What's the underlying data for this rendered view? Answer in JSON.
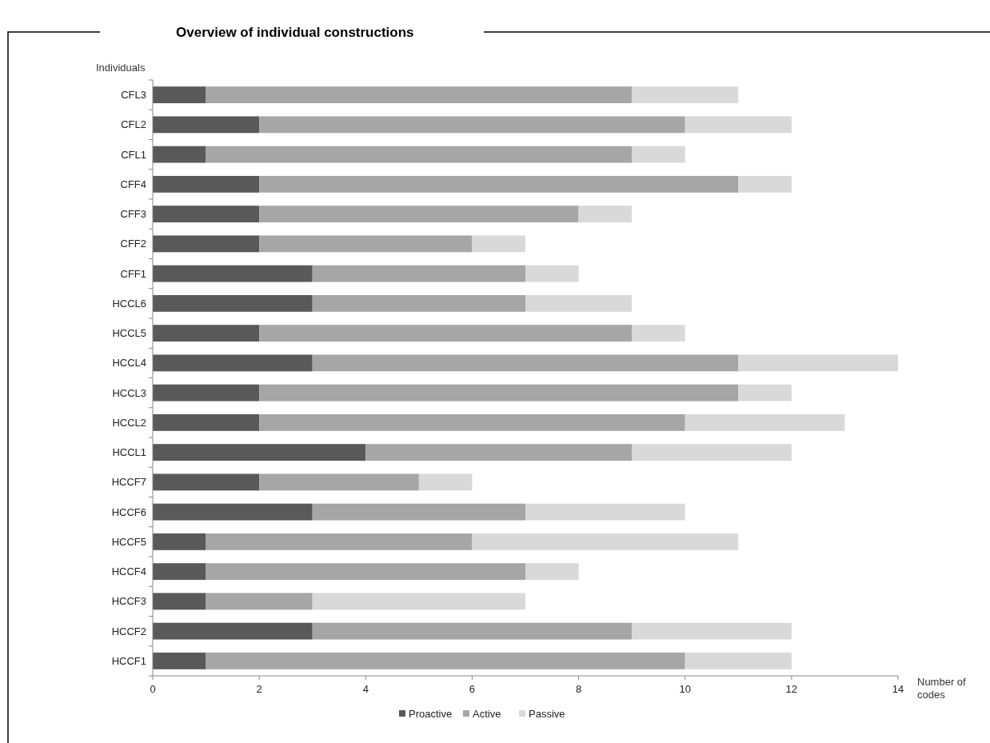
{
  "chart_data": {
    "type": "bar",
    "orientation": "horizontal",
    "stacked": true,
    "title": "Overview of individual constructions",
    "ylabel": "Individuals",
    "xlabel": "Number of codes",
    "categories": [
      "CFL3",
      "CFL2",
      "CFL1",
      "CFF4",
      "CFF3",
      "CFF2",
      "CFF1",
      "HCCL6",
      "HCCL5",
      "HCCL4",
      "HCCL3",
      "HCCL2",
      "HCCL1",
      "HCCF7",
      "HCCF6",
      "HCCF5",
      "HCCF4",
      "HCCF3",
      "HCCF2",
      "HCCF1"
    ],
    "series": [
      {
        "name": "Proactive",
        "color": "#595959",
        "values": [
          1,
          2,
          1,
          2,
          2,
          2,
          3,
          3,
          2,
          3,
          2,
          2,
          4,
          2,
          3,
          1,
          1,
          1,
          3,
          1
        ]
      },
      {
        "name": "Active",
        "color": "#a6a6a6",
        "values": [
          8,
          8,
          8,
          9,
          6,
          4,
          4,
          4,
          7,
          8,
          9,
          8,
          5,
          3,
          4,
          5,
          6,
          2,
          6,
          9
        ]
      },
      {
        "name": "Passive",
        "color": "#d9d9d9",
        "values": [
          2,
          2,
          1,
          1,
          1,
          1,
          1,
          2,
          1,
          3,
          1,
          3,
          3,
          1,
          3,
          5,
          1,
          4,
          3,
          2
        ]
      }
    ],
    "xlim": [
      0,
      14
    ],
    "xticks": [
      0,
      2,
      4,
      6,
      8,
      10,
      12,
      14
    ],
    "legend": "bottom"
  }
}
